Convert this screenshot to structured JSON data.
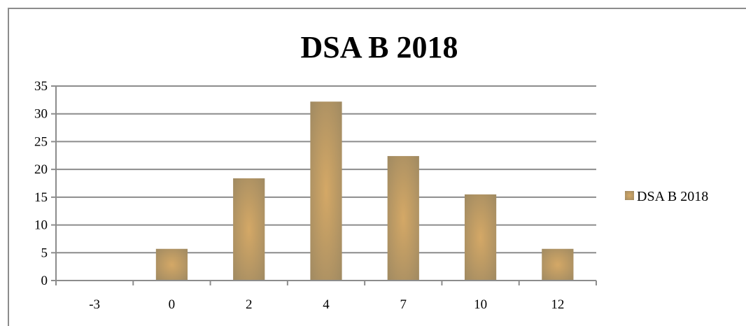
{
  "chart_data": {
    "type": "bar",
    "title": "DSA B 2018",
    "xlabel": "",
    "ylabel": "",
    "categories": [
      "-3",
      "0",
      "2",
      "4",
      "7",
      "10",
      "12"
    ],
    "series": [
      {
        "name": "DSA B 2018",
        "values": [
          0,
          5.7,
          18.4,
          32.2,
          22.4,
          15.5,
          5.7
        ]
      }
    ],
    "ylim": [
      0,
      35
    ],
    "yticks": [
      0,
      5,
      10,
      15,
      20,
      25,
      30,
      35
    ],
    "grid": true,
    "legend": "right",
    "colors": {
      "bar_center": "#d4a866",
      "bar_edge": "#a08a62",
      "gridline": "#8c8c8c",
      "axis": "#8c8c8c"
    }
  }
}
